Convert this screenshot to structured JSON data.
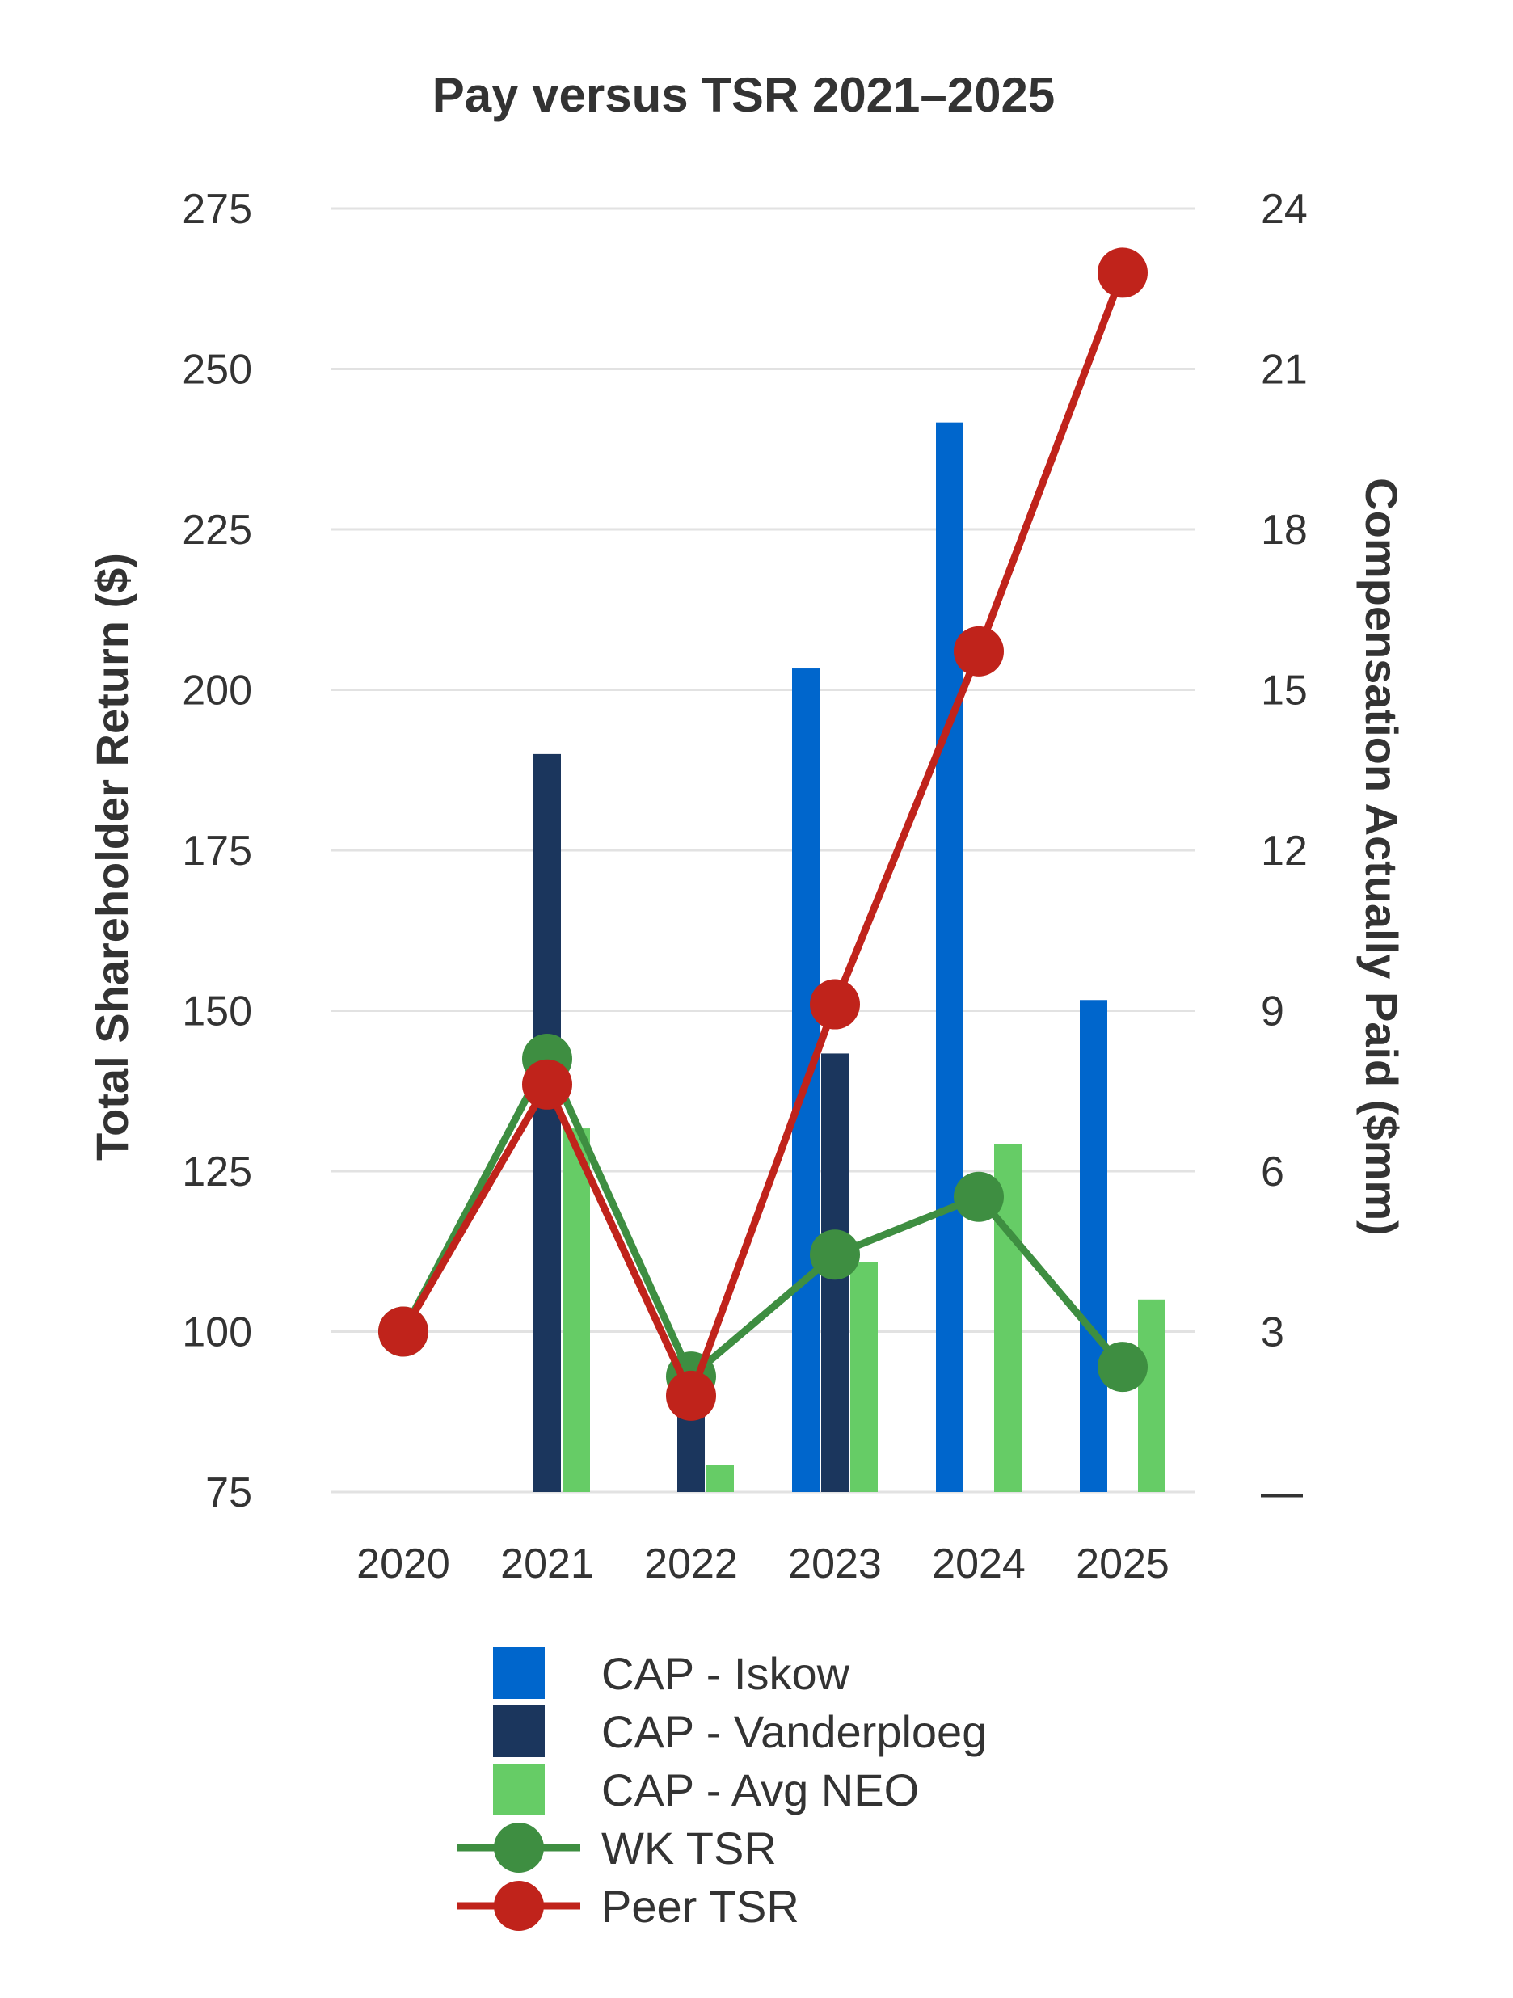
{
  "chart_data": {
    "type": "bar",
    "title": "Pay versus TSR 2021–2025",
    "categories": [
      "2020",
      "2021",
      "2022",
      "2023",
      "2024",
      "2025"
    ],
    "y_left": {
      "label": "Total Shareholder Return ($)",
      "range": [
        75,
        275
      ],
      "ticks": [
        "75",
        "100",
        "125",
        "150",
        "175",
        "200",
        "225",
        "250",
        "275"
      ]
    },
    "y_right": {
      "label": "Compensation Actually Paid ($mm)",
      "range": [
        0,
        24
      ],
      "ticks": [
        "—",
        "3",
        "6",
        "9",
        "12",
        "15",
        "18",
        "21",
        "24"
      ]
    },
    "grid": true,
    "legend_position": "bottom",
    "bar_series": [
      {
        "name": "CAP - Iskow",
        "axis": "right",
        "color": "#0066cc",
        "values": [
          null,
          null,
          null,
          15.4,
          20.0,
          9.2
        ]
      },
      {
        "name": "CAP - Vanderploeg",
        "axis": "right",
        "color": "#1b365d",
        "values": [
          null,
          13.8,
          2.0,
          8.2,
          null,
          null
        ]
      },
      {
        "name": "CAP - Avg NEO",
        "axis": "right",
        "color": "#66cc66",
        "values": [
          null,
          6.8,
          0.5,
          4.3,
          6.5,
          3.6
        ]
      }
    ],
    "line_series": [
      {
        "name": "WK TSR",
        "axis": "left",
        "color": "#3e8e41",
        "values": [
          100,
          142.5,
          93,
          112,
          121,
          94.5
        ]
      },
      {
        "name": "Peer TSR",
        "axis": "left",
        "color": "#c0231b",
        "values": [
          100,
          138.5,
          90,
          151,
          206,
          265
        ]
      }
    ]
  }
}
